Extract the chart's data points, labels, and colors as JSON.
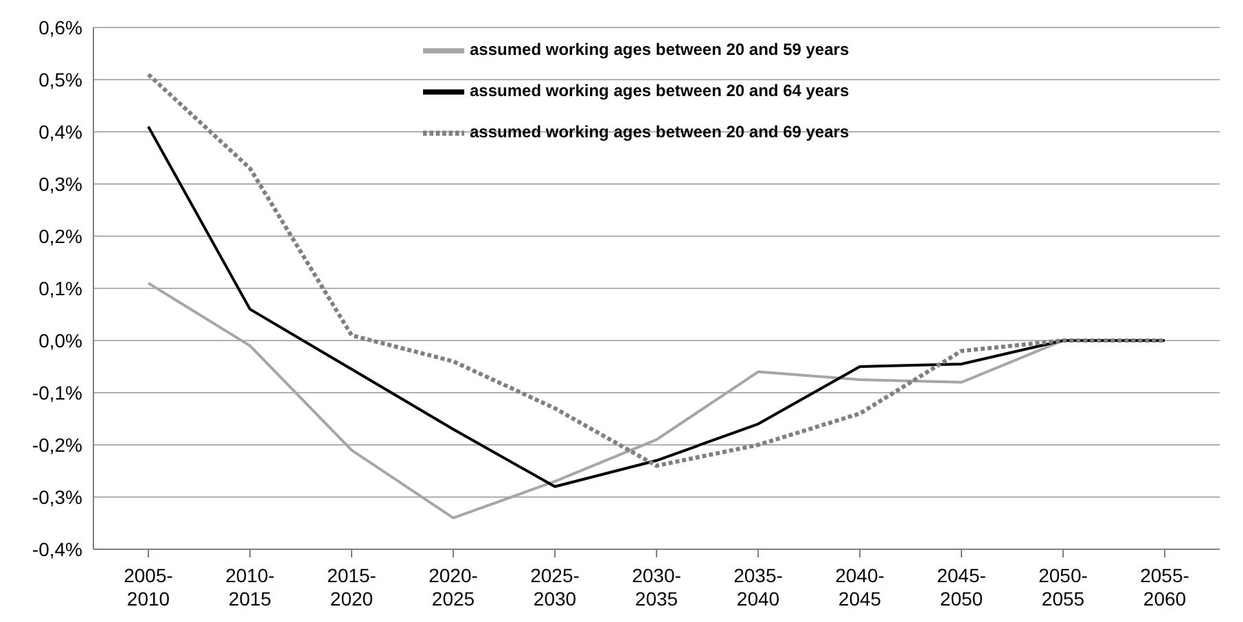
{
  "chart_data": {
    "type": "line",
    "categories": [
      "2005-2010",
      "2010-2015",
      "2015-2020",
      "2020-2025",
      "2025-2030",
      "2030-2035",
      "2035-2040",
      "2040-2045",
      "2045-2050",
      "2050-2055",
      "2055-2060"
    ],
    "series": [
      {
        "name": "assumed working ages between 20 and 59 years",
        "color": "#a6a6a6",
        "line_style": "solid",
        "values": [
          0.11,
          -0.01,
          -0.21,
          -0.34,
          -0.27,
          -0.19,
          -0.06,
          -0.075,
          -0.08,
          0,
          0
        ]
      },
      {
        "name": "assumed working ages between 20 and 64 years",
        "color": "#000000",
        "line_style": "solid",
        "values": [
          0.41,
          0.06,
          -0.055,
          -0.17,
          -0.28,
          -0.23,
          -0.16,
          -0.05,
          -0.045,
          0,
          0
        ]
      },
      {
        "name": "assumed working ages between 20 and 69 years",
        "color": "#808080",
        "line_style": "dotted",
        "values": [
          0.51,
          0.33,
          0.01,
          -0.04,
          -0.13,
          -0.24,
          -0.2,
          -0.14,
          -0.02,
          0,
          0
        ]
      }
    ],
    "ylim": [
      -0.4,
      0.6
    ],
    "yticks": [
      {
        "value": -0.4,
        "label": "-0,4%"
      },
      {
        "value": -0.3,
        "label": "-0,3%"
      },
      {
        "value": -0.2,
        "label": "-0,2%"
      },
      {
        "value": -0.1,
        "label": "-0,1%"
      },
      {
        "value": 0,
        "label": "0,0%"
      },
      {
        "value": 0.1,
        "label": "0,1%"
      },
      {
        "value": 0.2,
        "label": "0,2%"
      },
      {
        "value": 0.3,
        "label": "0,3%"
      },
      {
        "value": 0.4,
        "label": "0,4%"
      },
      {
        "value": 0.5,
        "label": "0,5%"
      },
      {
        "value": 0.6,
        "label": "0,6%"
      }
    ],
    "grid": "y",
    "legend": "top right",
    "marker": "none"
  }
}
